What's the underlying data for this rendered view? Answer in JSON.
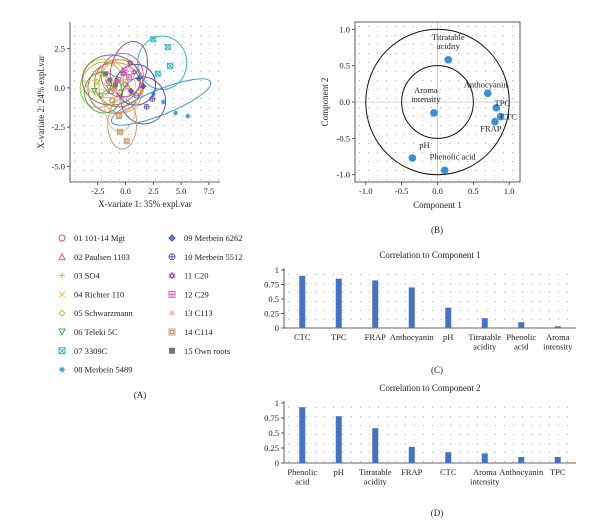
{
  "panels": {
    "a": "(A)",
    "b": "(B)",
    "c": "(C)",
    "d": "(D)"
  },
  "chart_data": [
    {
      "type": "scatter",
      "panel": "A",
      "xlabel": "X-variate 1: 35% expl.var",
      "ylabel": "X-variate 2: 24% expl.var",
      "xlim": [
        -5,
        8.5
      ],
      "ylim": [
        -6,
        4.2
      ],
      "xticks": [
        "-2.5",
        "0.0",
        "2.5",
        "5.0",
        "7.5"
      ],
      "xtickvals": [
        -2.5,
        0,
        2.5,
        5,
        7.5
      ],
      "yticks": [
        "2.5",
        "0.0",
        "-2.5",
        "-5.0"
      ],
      "ytickvals": [
        2.5,
        0,
        -2.5,
        -5
      ],
      "grid": true,
      "groups": [
        {
          "name": "01 101-14 Mgt",
          "symbol": "circle",
          "color": "#e2553a",
          "ellipse": [
            -1.0,
            0.0,
            2.4,
            1.6,
            -15
          ],
          "points": [
            [
              -1.5,
              0.4
            ],
            [
              -0.5,
              -0.3
            ],
            [
              -1.2,
              -0.8
            ],
            [
              0.0,
              0.2
            ]
          ]
        },
        {
          "name": "02 Paulsen 1103",
          "symbol": "triangle",
          "color": "#e8663d",
          "ellipse": [
            -0.6,
            0.3,
            2.2,
            1.5,
            10
          ],
          "points": [
            [
              -0.8,
              0.6
            ],
            [
              0.2,
              0.1
            ],
            [
              -1.3,
              -0.2
            ]
          ]
        },
        {
          "name": "03 SO4",
          "symbol": "plus",
          "color": "#f0a53a",
          "ellipse": [
            -0.4,
            0.1,
            2.0,
            1.7,
            0
          ],
          "points": [
            [
              -0.2,
              0.5
            ],
            [
              0.4,
              -0.4
            ],
            [
              -1.0,
              0.0
            ]
          ]
        },
        {
          "name": "04 Richter 110",
          "symbol": "x",
          "color": "#e9c53a",
          "ellipse": [
            -1.8,
            0.6,
            2.0,
            1.2,
            20
          ],
          "points": [
            [
              -2.0,
              0.8
            ],
            [
              -1.2,
              0.2
            ],
            [
              -2.5,
              0.3
            ]
          ]
        },
        {
          "name": "05 Schwarzmann",
          "symbol": "diamond",
          "color": "#9ccc3a",
          "ellipse": [
            -2.2,
            0.2,
            1.8,
            1.5,
            30
          ],
          "points": [
            [
              -2.6,
              0.4
            ],
            [
              -1.8,
              -0.3
            ],
            [
              -2.3,
              0.9
            ]
          ]
        },
        {
          "name": "06 Teleki 5C",
          "symbol": "tridown",
          "color": "#3ab34a",
          "ellipse": [
            -2.0,
            -0.3,
            1.7,
            1.3,
            -10
          ],
          "points": [
            [
              -2.2,
              -0.5
            ],
            [
              -1.5,
              0.0
            ],
            [
              -2.8,
              -0.2
            ]
          ]
        },
        {
          "name": "07 3309C",
          "symbol": "boxx",
          "color": "#2fb8c8",
          "ellipse": [
            3.3,
            1.6,
            2.2,
            1.7,
            0
          ],
          "points": [
            [
              2.5,
              3.1
            ],
            [
              3.8,
              2.6
            ],
            [
              2.9,
              0.9
            ],
            [
              4.0,
              1.4
            ]
          ]
        },
        {
          "name": "08 Merbein 5489",
          "symbol": "asterisk",
          "color": "#3a9ad9",
          "ellipse": [
            3.2,
            -0.9,
            4.8,
            0.8,
            -22
          ],
          "points": [
            [
              2.5,
              -0.4
            ],
            [
              4.5,
              -1.6
            ],
            [
              5.6,
              -1.8
            ],
            [
              3.4,
              -0.9
            ]
          ]
        },
        {
          "name": "09 Merbein 6262",
          "symbol": "circplus",
          "color": "#3a4fa8",
          "ellipse": [
            0.9,
            0.2,
            1.8,
            1.3,
            5
          ],
          "points": [
            [
              1.2,
              0.6
            ],
            [
              0.5,
              -0.2
            ],
            [
              1.6,
              0.1
            ]
          ]
        },
        {
          "name": "10 Merbein 5512",
          "symbol": "circplus2",
          "color": "#6a55b8",
          "ellipse": [
            1.6,
            -0.8,
            2.0,
            1.5,
            -15
          ],
          "points": [
            [
              1.9,
              -1.2
            ],
            [
              1.0,
              -0.5
            ],
            [
              2.4,
              -0.7
            ]
          ]
        },
        {
          "name": "11 C20",
          "symbol": "star",
          "color": "#9b4fb0",
          "ellipse": [
            0.3,
            1.2,
            1.6,
            1.8,
            15
          ],
          "points": [
            [
              0.4,
              1.6
            ],
            [
              -0.2,
              0.9
            ],
            [
              0.8,
              1.0
            ]
          ]
        },
        {
          "name": "12 C29",
          "symbol": "boxplus",
          "color": "#e05ea8",
          "ellipse": [
            -0.3,
            0.8,
            1.9,
            1.4,
            -5
          ],
          "points": [
            [
              -0.1,
              1.1
            ],
            [
              -0.7,
              0.5
            ],
            [
              0.3,
              0.7
            ]
          ]
        },
        {
          "name": "13 C113",
          "symbol": "asterisk",
          "color": "#f0b8a0",
          "ellipse": [
            -0.5,
            -0.6,
            1.5,
            2.2,
            0
          ],
          "points": [
            [
              -0.4,
              -0.9
            ],
            [
              -0.8,
              -0.2
            ],
            [
              0.0,
              -1.4
            ]
          ]
        },
        {
          "name": "14 C114",
          "symbol": "boxsq",
          "color": "#c89a70",
          "ellipse": [
            -0.3,
            -2.3,
            1.3,
            1.6,
            0
          ],
          "points": [
            [
              -0.5,
              -2.8
            ],
            [
              0.1,
              -3.4
            ],
            [
              -0.6,
              -1.8
            ]
          ]
        },
        {
          "name": "15 Own roots",
          "symbol": "square",
          "color": "#777777",
          "ellipse": [
            -1.3,
            0.5,
            2.6,
            1.6,
            0
          ],
          "points": [
            [
              -1.4,
              0.5
            ],
            [
              -0.9,
              0.2
            ],
            [
              -1.8,
              0.9
            ]
          ]
        }
      ]
    },
    {
      "type": "scatter",
      "panel": "B",
      "xlabel": "Component 1",
      "ylabel": "Component 2",
      "xlim": [
        -1.15,
        1.15
      ],
      "ylim": [
        -1.1,
        1.1
      ],
      "xticks": [
        "-1.0",
        "-0.5",
        "0.0",
        "0.5",
        "1.0"
      ],
      "xtickvals": [
        -1,
        -0.5,
        0,
        0.5,
        1
      ],
      "yticks": [
        "1.0",
        "0.5",
        "0.0",
        "-0.5",
        "-1.0"
      ],
      "ytickvals": [
        1,
        0.5,
        0,
        -0.5,
        -1
      ],
      "circles": [
        1.0,
        0.5
      ],
      "points": [
        {
          "label": "Titratable acidity",
          "label_lines": [
            "Titratable",
            "acidity"
          ],
          "x": 0.15,
          "y": 0.58
        },
        {
          "label": "Anthocyanin",
          "label_lines": [
            "Anthocyanin"
          ],
          "x": 0.7,
          "y": 0.12
        },
        {
          "label": "TPC",
          "label_lines": [
            "TPC"
          ],
          "x": 0.82,
          "y": -0.08
        },
        {
          "label": "CTC",
          "label_lines": [
            "CTC"
          ],
          "x": 0.88,
          "y": -0.2
        },
        {
          "label": "FRAP",
          "label_lines": [
            "FRAP"
          ],
          "x": 0.8,
          "y": -0.27
        },
        {
          "label": "Aroma intensity",
          "label_lines": [
            "Aroma",
            "intensity"
          ],
          "x": -0.05,
          "y": -0.15
        },
        {
          "label": "pH",
          "label_lines": [
            "pH"
          ],
          "x": -0.35,
          "y": -0.77
        },
        {
          "label": "Phenolic acid",
          "label_lines": [
            "Phenolic acid"
          ],
          "x": 0.1,
          "y": -0.94
        }
      ]
    },
    {
      "type": "bar",
      "panel": "C",
      "title": "Correlation to Component 1",
      "categories": [
        "CTC",
        "TPC",
        "FRAP",
        "Anthocyanin",
        "pH",
        "Titratable acidity",
        "Phenolic acid",
        "Aroma intensity"
      ],
      "category_lines": [
        [
          "CTC"
        ],
        [
          "TPC"
        ],
        [
          "FRAP"
        ],
        [
          "Anthocyanin"
        ],
        [
          "pH"
        ],
        [
          "Titratable",
          "acidity"
        ],
        [
          "Phenolic",
          "acid"
        ],
        [
          "Aroma",
          "intensity"
        ]
      ],
      "values": [
        0.9,
        0.85,
        0.82,
        0.7,
        0.35,
        0.17,
        0.1,
        0.03
      ],
      "ylim": [
        0,
        1
      ],
      "yticks": [
        "1",
        "0.75",
        "0.5",
        "0.25",
        "0"
      ],
      "ytickvals": [
        1,
        0.75,
        0.5,
        0.25,
        0
      ],
      "color": "#4472c4"
    },
    {
      "type": "bar",
      "panel": "D",
      "title": "Correlation to Component 2",
      "categories": [
        "Phenolic acid",
        "pH",
        "Titratable acidity",
        "FRAP",
        "CTC",
        "Aroma intensity",
        "Anthocyanin",
        "TPC"
      ],
      "category_lines": [
        [
          "Phenolic",
          "acid"
        ],
        [
          "pH"
        ],
        [
          "Titratable",
          "acidity"
        ],
        [
          "FRAP"
        ],
        [
          "CTC"
        ],
        [
          "Aroma",
          "intensity"
        ],
        [
          "Anthocyanin"
        ],
        [
          "TPC"
        ]
      ],
      "values": [
        0.93,
        0.78,
        0.58,
        0.27,
        0.18,
        0.16,
        0.1,
        0.1
      ],
      "ylim": [
        0,
        1
      ],
      "yticks": [
        "1",
        "0.75",
        "0.5",
        "0.25",
        "0"
      ],
      "ytickvals": [
        1,
        0.75,
        0.5,
        0.25,
        0
      ],
      "color": "#4472c4"
    }
  ]
}
